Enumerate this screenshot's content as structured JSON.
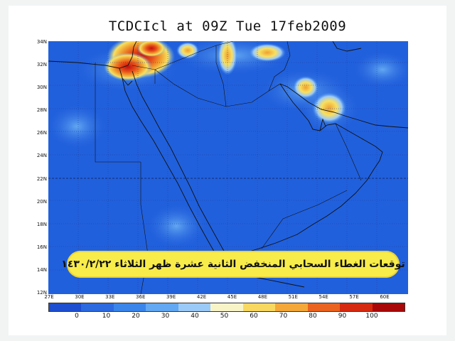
{
  "map": {
    "title": "TCDCIcl at 09Z Tue 17feb2009",
    "lat_labels": [
      "34N",
      "32N",
      "30N",
      "28N",
      "26N",
      "24N",
      "22N",
      "20N",
      "18N",
      "16N",
      "14N",
      "12N"
    ],
    "lon_labels": [
      "27E",
      "30E",
      "33E",
      "36E",
      "39E",
      "42E",
      "45E",
      "48E",
      "51E",
      "54E",
      "57E",
      "60E"
    ],
    "colorbar": {
      "ticks": [
        "0",
        "10",
        "20",
        "30",
        "40",
        "50",
        "60",
        "70",
        "80",
        "90",
        "100"
      ],
      "colors": [
        "#1d4fd0",
        "#2c6ae0",
        "#3a85ea",
        "#62a8f2",
        "#9ccaf8",
        "#f8f4c8",
        "#f8d860",
        "#f4a83a",
        "#ea6420",
        "#d62a10",
        "#a80808"
      ]
    },
    "background_color": "#2060dc",
    "cloud_colors": [
      "#f8e060",
      "#f0a030",
      "#e85018",
      "#c01010"
    ]
  },
  "banner": {
    "text": "توقعات الغطاء السحابي المنخفض الثانية عشرة ظهر الثلاثاء ١٤٣٠/٢/٢٢"
  }
}
